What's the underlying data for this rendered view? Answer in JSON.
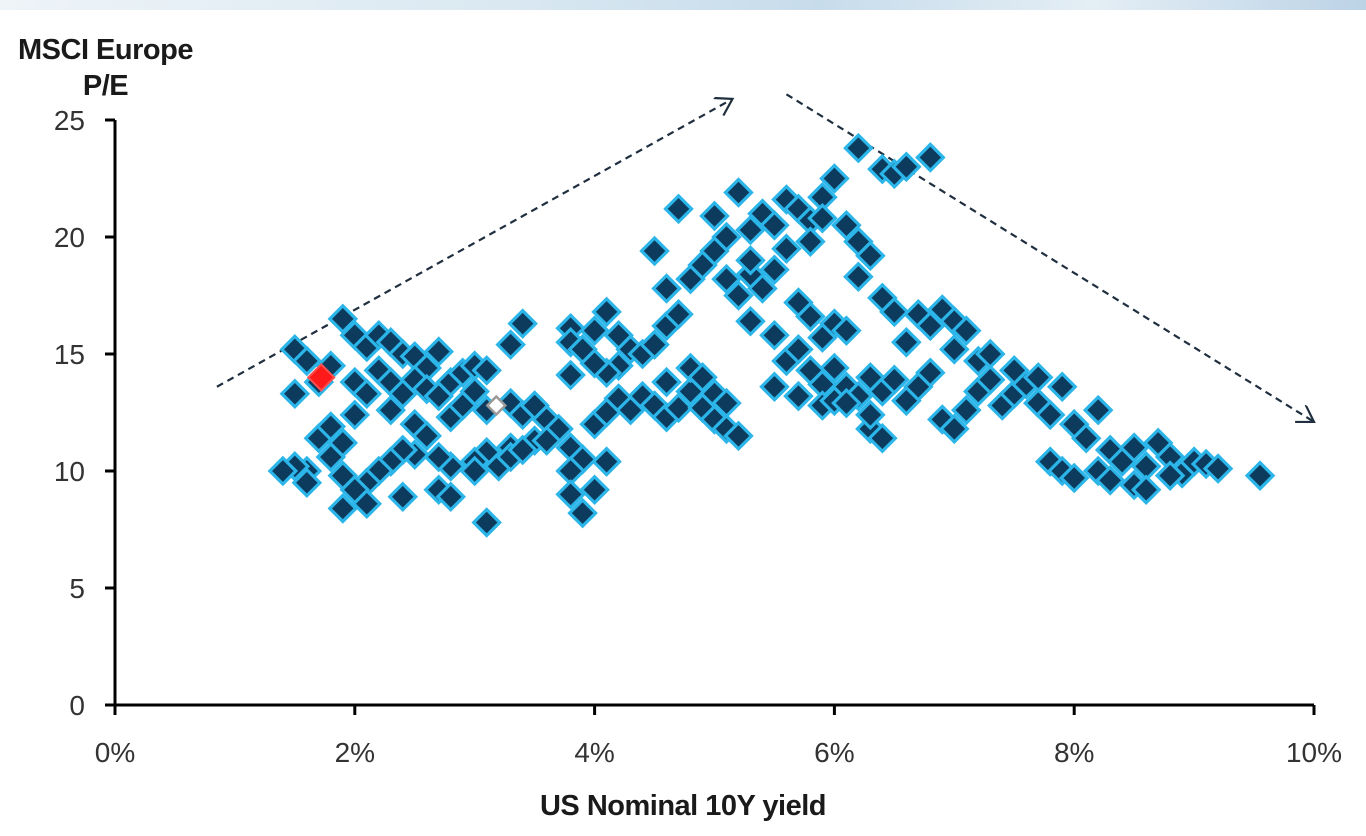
{
  "chart_data": {
    "type": "scatter",
    "title": "",
    "ylabel_lines": [
      "MSCI Europe",
      "P/E"
    ],
    "xlabel": "US Nominal 10Y yield",
    "xlim": [
      0,
      10
    ],
    "ylim": [
      0,
      25
    ],
    "x_ticks": [
      0,
      2,
      4,
      6,
      8,
      10
    ],
    "x_tick_labels": [
      "0%",
      "2%",
      "4%",
      "6%",
      "8%",
      "10%"
    ],
    "y_ticks": [
      0,
      5,
      10,
      15,
      20,
      25
    ],
    "y_tick_labels": [
      "0",
      "5",
      "10",
      "15",
      "20",
      "25"
    ],
    "grid": false,
    "legend": "none",
    "colors": {
      "point_fill": "#0d3b5e",
      "point_edge": "#2bb5e8",
      "current": "#ff1a1a",
      "reference_edge": "#9a9a9a",
      "arrow": "#1f2f3f"
    },
    "series": [
      {
        "points": [
          [
            1.5,
            15.2
          ],
          [
            1.6,
            14.7
          ],
          [
            1.5,
            13.3
          ],
          [
            1.7,
            13.8
          ],
          [
            1.8,
            14.5
          ],
          [
            1.9,
            16.5
          ],
          [
            2.0,
            15.8
          ],
          [
            2.1,
            15.3
          ],
          [
            2.2,
            15.8
          ],
          [
            2.3,
            15.5
          ],
          [
            2.4,
            15.0
          ],
          [
            2.5,
            14.9
          ],
          [
            2.6,
            14.4
          ],
          [
            2.7,
            15.1
          ],
          [
            2.2,
            14.3
          ],
          [
            2.3,
            13.8
          ],
          [
            2.4,
            13.3
          ],
          [
            2.5,
            13.9
          ],
          [
            2.6,
            13.5
          ],
          [
            2.7,
            13.2
          ],
          [
            2.8,
            13.8
          ],
          [
            2.9,
            14.2
          ],
          [
            3.0,
            14.5
          ],
          [
            3.1,
            14.3
          ],
          [
            2.0,
            13.8
          ],
          [
            2.1,
            13.3
          ],
          [
            2.3,
            12.6
          ],
          [
            2.5,
            12.0
          ],
          [
            2.6,
            11.5
          ],
          [
            2.8,
            12.3
          ],
          [
            2.9,
            12.8
          ],
          [
            3.0,
            13.4
          ],
          [
            3.1,
            12.6
          ],
          [
            3.3,
            12.9
          ],
          [
            3.4,
            12.4
          ],
          [
            3.5,
            12.8
          ],
          [
            3.6,
            12.2
          ],
          [
            3.7,
            11.8
          ],
          [
            3.5,
            11.3
          ],
          [
            3.3,
            11.0
          ],
          [
            3.1,
            10.8
          ],
          [
            3.0,
            10.4
          ],
          [
            2.8,
            10.2
          ],
          [
            2.7,
            10.6
          ],
          [
            2.5,
            10.7
          ],
          [
            2.4,
            10.9
          ],
          [
            2.3,
            10.4
          ],
          [
            2.2,
            10.0
          ],
          [
            2.1,
            9.5
          ],
          [
            2.0,
            9.2
          ],
          [
            1.9,
            9.8
          ],
          [
            1.8,
            10.6
          ],
          [
            1.7,
            11.4
          ],
          [
            1.8,
            11.9
          ],
          [
            1.9,
            11.2
          ],
          [
            2.0,
            12.4
          ],
          [
            1.6,
            10.0
          ],
          [
            1.5,
            10.2
          ],
          [
            1.4,
            10.0
          ],
          [
            1.6,
            9.5
          ],
          [
            1.9,
            8.4
          ],
          [
            2.1,
            8.6
          ],
          [
            2.4,
            8.9
          ],
          [
            2.7,
            9.2
          ],
          [
            2.8,
            8.9
          ],
          [
            3.0,
            10.0
          ],
          [
            3.2,
            10.2
          ],
          [
            3.3,
            10.6
          ],
          [
            3.4,
            10.9
          ],
          [
            3.1,
            7.8
          ],
          [
            3.6,
            11.3
          ],
          [
            3.8,
            11.0
          ],
          [
            3.9,
            10.5
          ],
          [
            3.8,
            10.0
          ],
          [
            3.8,
            9.0
          ],
          [
            3.9,
            8.2
          ],
          [
            4.0,
            9.2
          ],
          [
            4.1,
            10.4
          ],
          [
            4.0,
            12.0
          ],
          [
            4.1,
            12.5
          ],
          [
            4.2,
            13.1
          ],
          [
            4.3,
            12.6
          ],
          [
            4.4,
            13.2
          ],
          [
            4.5,
            12.8
          ],
          [
            4.6,
            12.3
          ],
          [
            4.7,
            12.7
          ],
          [
            4.8,
            13.4
          ],
          [
            4.9,
            12.7
          ],
          [
            5.0,
            12.2
          ],
          [
            5.1,
            11.8
          ],
          [
            5.2,
            11.5
          ],
          [
            5.0,
            13.3
          ],
          [
            5.1,
            12.9
          ],
          [
            4.6,
            13.8
          ],
          [
            4.8,
            14.4
          ],
          [
            4.9,
            14.0
          ],
          [
            3.3,
            15.4
          ],
          [
            3.4,
            16.3
          ],
          [
            3.8,
            16.1
          ],
          [
            3.8,
            15.5
          ],
          [
            3.9,
            15.2
          ],
          [
            4.0,
            16.0
          ],
          [
            4.1,
            16.8
          ],
          [
            4.2,
            15.8
          ],
          [
            4.3,
            15.2
          ],
          [
            4.2,
            14.5
          ],
          [
            4.1,
            14.2
          ],
          [
            4.0,
            14.6
          ],
          [
            3.8,
            14.1
          ],
          [
            4.4,
            15.0
          ],
          [
            4.5,
            15.4
          ],
          [
            4.6,
            16.2
          ],
          [
            4.7,
            16.7
          ],
          [
            4.6,
            17.8
          ],
          [
            4.5,
            19.4
          ],
          [
            4.7,
            21.2
          ],
          [
            4.8,
            18.2
          ],
          [
            4.9,
            18.8
          ],
          [
            5.0,
            19.4
          ],
          [
            5.1,
            20.0
          ],
          [
            5.0,
            20.9
          ],
          [
            5.2,
            21.9
          ],
          [
            5.1,
            18.2
          ],
          [
            5.2,
            17.5
          ],
          [
            5.3,
            18.4
          ],
          [
            5.3,
            19.0
          ],
          [
            5.3,
            20.3
          ],
          [
            5.4,
            21.0
          ],
          [
            5.5,
            20.5
          ],
          [
            5.6,
            21.6
          ],
          [
            5.7,
            21.2
          ],
          [
            5.8,
            20.7
          ],
          [
            5.9,
            21.7
          ],
          [
            6.0,
            22.5
          ],
          [
            5.9,
            20.8
          ],
          [
            5.8,
            19.8
          ],
          [
            5.6,
            19.5
          ],
          [
            5.5,
            18.6
          ],
          [
            5.4,
            17.8
          ],
          [
            5.3,
            16.4
          ],
          [
            5.5,
            15.8
          ],
          [
            5.7,
            17.2
          ],
          [
            5.8,
            16.6
          ],
          [
            5.9,
            15.7
          ],
          [
            6.0,
            16.3
          ],
          [
            6.1,
            16.0
          ],
          [
            6.1,
            20.5
          ],
          [
            6.2,
            19.8
          ],
          [
            6.3,
            19.2
          ],
          [
            6.2,
            18.3
          ],
          [
            6.4,
            17.4
          ],
          [
            6.5,
            16.8
          ],
          [
            6.6,
            15.5
          ],
          [
            6.7,
            16.7
          ],
          [
            6.8,
            16.2
          ],
          [
            6.9,
            16.9
          ],
          [
            7.0,
            16.4
          ],
          [
            7.1,
            16.0
          ],
          [
            5.6,
            14.7
          ],
          [
            5.7,
            15.2
          ],
          [
            5.8,
            14.3
          ],
          [
            5.9,
            13.7
          ],
          [
            6.0,
            14.4
          ],
          [
            6.1,
            13.6
          ],
          [
            6.2,
            13.2
          ],
          [
            6.3,
            14.0
          ],
          [
            6.4,
            13.4
          ],
          [
            6.5,
            13.9
          ],
          [
            6.6,
            13.0
          ],
          [
            6.7,
            13.6
          ],
          [
            6.8,
            14.2
          ],
          [
            6.9,
            12.2
          ],
          [
            7.0,
            11.8
          ],
          [
            7.1,
            12.6
          ],
          [
            7.2,
            13.4
          ],
          [
            7.3,
            13.9
          ],
          [
            7.4,
            12.8
          ],
          [
            7.5,
            13.3
          ],
          [
            7.6,
            13.7
          ],
          [
            7.7,
            12.9
          ],
          [
            7.8,
            12.4
          ],
          [
            7.9,
            13.6
          ],
          [
            8.0,
            12.0
          ],
          [
            8.1,
            11.4
          ],
          [
            8.2,
            12.6
          ],
          [
            8.3,
            10.9
          ],
          [
            8.4,
            10.4
          ],
          [
            8.5,
            11.0
          ],
          [
            8.6,
            10.2
          ],
          [
            8.7,
            11.2
          ],
          [
            8.8,
            10.6
          ],
          [
            8.9,
            9.9
          ],
          [
            9.0,
            10.4
          ],
          [
            9.1,
            10.3
          ],
          [
            9.2,
            10.1
          ],
          [
            9.55,
            9.8
          ],
          [
            7.8,
            10.4
          ],
          [
            7.9,
            10.0
          ],
          [
            8.0,
            9.7
          ],
          [
            8.2,
            10.0
          ],
          [
            8.3,
            9.6
          ],
          [
            8.5,
            9.4
          ],
          [
            8.6,
            9.2
          ],
          [
            8.8,
            9.8
          ],
          [
            6.2,
            23.8
          ],
          [
            6.4,
            22.9
          ],
          [
            6.5,
            22.7
          ],
          [
            6.6,
            23.0
          ],
          [
            6.8,
            23.4
          ],
          [
            6.3,
            11.8
          ],
          [
            6.4,
            11.4
          ],
          [
            5.5,
            13.6
          ],
          [
            5.7,
            13.2
          ],
          [
            5.9,
            12.8
          ],
          [
            6.0,
            13.0
          ],
          [
            6.1,
            12.9
          ],
          [
            6.3,
            12.4
          ],
          [
            7.0,
            15.2
          ],
          [
            7.2,
            14.7
          ],
          [
            7.3,
            15.0
          ],
          [
            7.5,
            14.3
          ],
          [
            7.7,
            14.0
          ]
        ]
      }
    ],
    "highlighted_points": [
      {
        "x": 1.72,
        "y": 14.0,
        "marker": "red-diamond"
      },
      {
        "x": 3.18,
        "y": 12.8,
        "marker": "hollow-gray-diamond"
      }
    ],
    "trend_arrows": [
      {
        "from": [
          0.85,
          13.6
        ],
        "to": [
          5.15,
          25.9
        ],
        "style": "dashed"
      },
      {
        "from": [
          5.6,
          26.1
        ],
        "to": [
          10.0,
          12.1
        ],
        "style": "dashed"
      }
    ]
  }
}
